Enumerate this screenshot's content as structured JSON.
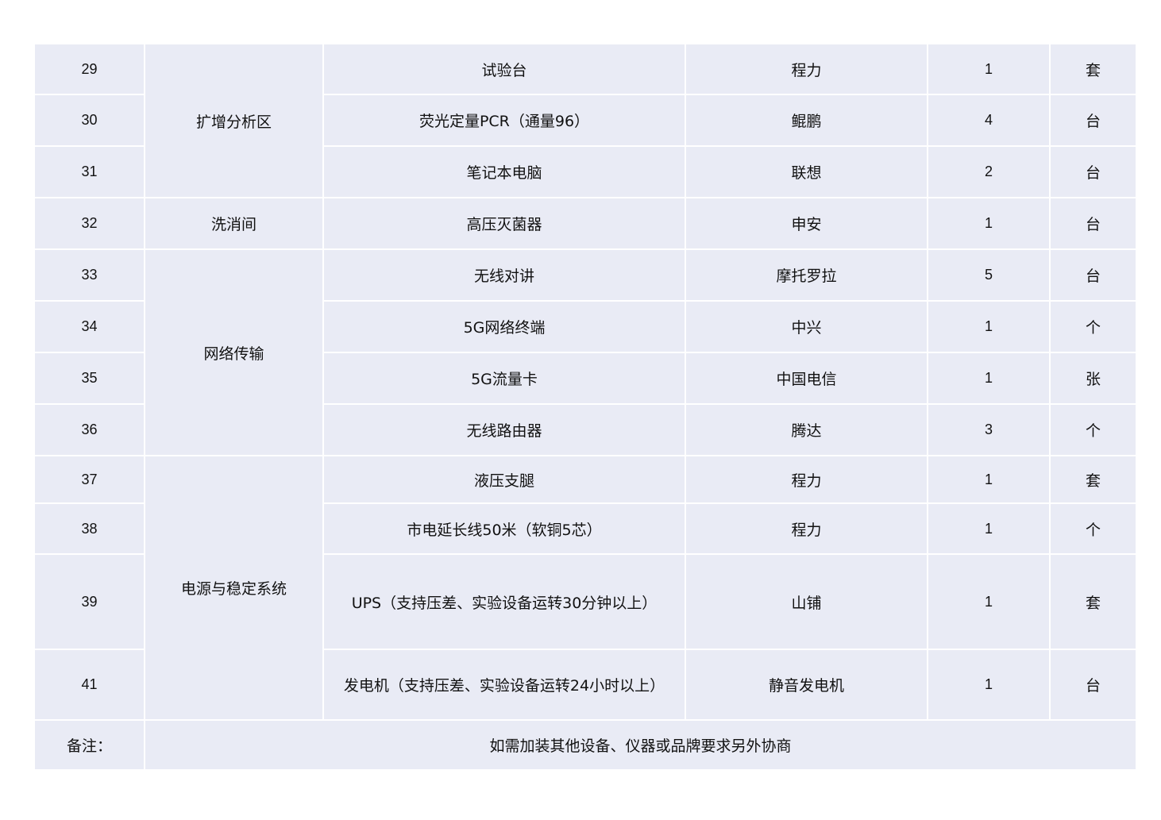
{
  "rows": [
    {
      "no": "29",
      "item": "试验台",
      "brand": "程力",
      "qty": "1",
      "unit": "套"
    },
    {
      "no": "30",
      "item": "荧光定量PCR（通量96）",
      "brand": "鲲鹏",
      "qty": "4",
      "unit": "台"
    },
    {
      "no": "31",
      "item": "笔记本电脑",
      "brand": "联想",
      "qty": "2",
      "unit": "台"
    },
    {
      "no": "32",
      "item": "高压灭菌器",
      "brand": "申安",
      "qty": "1",
      "unit": "台"
    },
    {
      "no": "33",
      "item": "无线对讲",
      "brand": "摩托罗拉",
      "qty": "5",
      "unit": "台"
    },
    {
      "no": "34",
      "item": "5G网络终端",
      "brand": "中兴",
      "qty": "1",
      "unit": "个"
    },
    {
      "no": "35",
      "item": "5G流量卡",
      "brand": "中国电信",
      "qty": "1",
      "unit": "张"
    },
    {
      "no": "36",
      "item": "无线路由器",
      "brand": "腾达",
      "qty": "3",
      "unit": "个"
    },
    {
      "no": "37",
      "item": "液压支腿",
      "brand": "程力",
      "qty": "1",
      "unit": "套"
    },
    {
      "no": "38",
      "item": "市电延长线50米（软铜5芯）",
      "brand": "程力",
      "qty": "1",
      "unit": "个"
    },
    {
      "no": "39",
      "item": "UPS（支持压差、实验设备运转30分钟以上）",
      "brand": "山铺",
      "qty": "1",
      "unit": "套"
    },
    {
      "no": "41",
      "item": "发电机（支持压差、实验设备运转24小时以上）",
      "brand": "静音发电机",
      "qty": "1",
      "unit": "台"
    }
  ],
  "areas": [
    "扩增分析区",
    "洗消间",
    "网络传输",
    "电源与稳定系统"
  ],
  "remark": {
    "label": "备注：",
    "text": "如需加装其他设备、仪器或品牌要求另外协商"
  },
  "colors": {
    "cell_bg": "#E9EBF5",
    "border": "#FFFFFF"
  }
}
